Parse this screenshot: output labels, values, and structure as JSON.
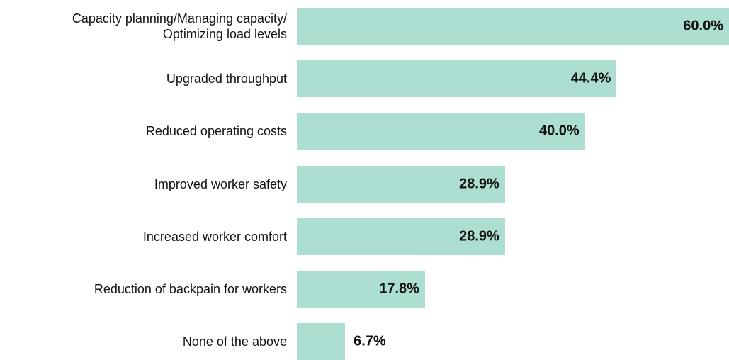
{
  "chart_data": {
    "type": "bar",
    "orientation": "horizontal",
    "categories": [
      "Capacity planning/Managing capacity/\nOptimizing load levels",
      "Upgraded throughput",
      "Reduced operating costs",
      "Improved worker safety",
      "Increased worker comfort",
      "Reduction of backpain for workers",
      "None of the above"
    ],
    "values": [
      60.0,
      44.4,
      40.0,
      28.9,
      28.9,
      17.8,
      6.7
    ],
    "value_labels": [
      "60.0%",
      "44.4%",
      "40.0%",
      "28.9%",
      "28.9%",
      "17.8%",
      "6.7%"
    ],
    "color": "#acdfd1"
  }
}
